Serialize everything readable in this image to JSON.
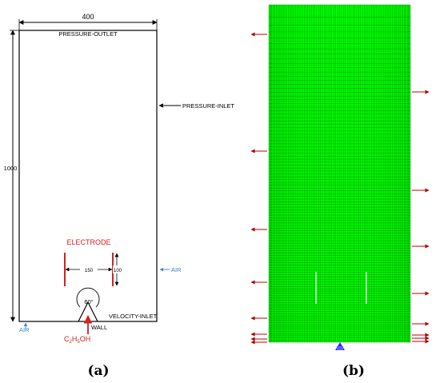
{
  "panel_a": {
    "width_dim": "400",
    "height_dim": "1000",
    "top_boundary": "PRESSURE-OUTLET",
    "side_boundary": "PRESSURE-INLET",
    "electrode_label": "ELECTRODE",
    "electrode_gap": "150",
    "electrode_length": "100",
    "right_air": "AIR",
    "left_air": "AIR",
    "angle": "60°",
    "bottom_boundary": "VELOCITY-INLET",
    "wall": "WALL",
    "fuel_C": "C",
    "fuel_sub1": "2",
    "fuel_H": "H",
    "fuel_sub2": "5",
    "fuel_OH": "OH",
    "caption": "(a)"
  },
  "panel_b": {
    "caption": "(b)",
    "mesh_color": "#00ff00",
    "arrow_color": "#c00000"
  },
  "colors": {
    "red": "#d42020",
    "blue": "#3a86d4"
  }
}
